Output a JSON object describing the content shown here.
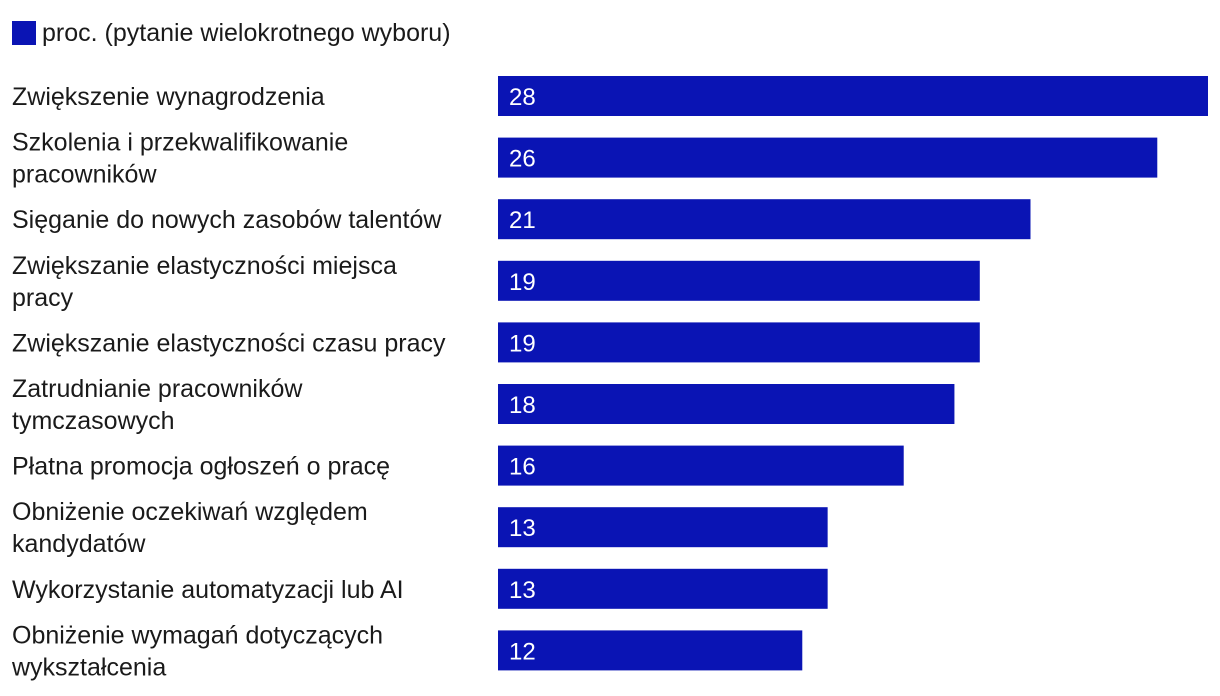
{
  "legend": {
    "label": "proc. (pytanie wielokrotnego wyboru)"
  },
  "colors": {
    "bar": "#0a14b4",
    "label_text": "#1a1a1a",
    "value_text": "#ffffff"
  },
  "chart_data": {
    "type": "bar",
    "orientation": "horizontal",
    "categories": [
      [
        "Zwiększenie wynagrodzenia"
      ],
      [
        "Szkolenia i przekwalifikowanie",
        "pracowników"
      ],
      [
        "Sięganie do nowych zasobów talentów"
      ],
      [
        "Zwiększanie elastyczności miejsca",
        "pracy"
      ],
      [
        "Zwiększanie elastyczności czasu pracy"
      ],
      [
        "Zatrudnianie pracowników",
        "tymczasowych"
      ],
      [
        "Płatna promocja ogłoszeń o pracę"
      ],
      [
        "Obniżenie oczekiwań względem",
        "kandydatów"
      ],
      [
        "Wykorzystanie automatyzacji lub AI"
      ],
      [
        "Obniżenie wymagań dotyczących",
        "wykształcenia"
      ]
    ],
    "values": [
      28,
      26,
      21,
      19,
      19,
      18,
      16,
      13,
      13,
      12
    ],
    "series_name": "proc. (pytanie wielokrotnego wyboru)",
    "xlim": [
      0,
      28
    ],
    "grid": false,
    "legend_position": "top-left",
    "data_labels": true
  }
}
